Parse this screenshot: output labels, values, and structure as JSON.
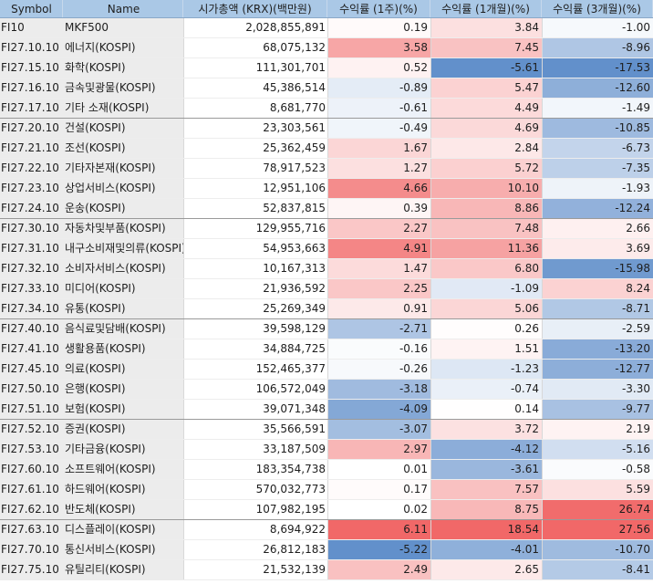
{
  "columns": [
    "Symbol",
    "Name",
    "시가총액 (KRX)(백만원)",
    "수익률 (1주)(%)",
    "수익률 (1개월)(%)",
    "수익률 (3개월)(%)"
  ],
  "colors": {
    "header_bg": "#aac8e6",
    "positive_base": "#f06060",
    "negative_base": "#5a8ac8",
    "label_col_bg": "#ececec"
  },
  "rows": [
    {
      "symbol": "FI10",
      "name": "MKF500",
      "mcap": "2,028,855,891",
      "r1w": "0.19",
      "r1m": "3.84",
      "r3m": "-1.00"
    },
    {
      "symbol": "FI27.10.10",
      "name": "에너지(KOSPI)",
      "mcap": "68,075,132",
      "r1w": "3.58",
      "r1m": "7.45",
      "r3m": "-8.96"
    },
    {
      "symbol": "FI27.15.10",
      "name": "화학(KOSPI)",
      "mcap": "111,301,701",
      "r1w": "0.52",
      "r1m": "-5.61",
      "r3m": "-17.53"
    },
    {
      "symbol": "FI27.16.10",
      "name": "금속및광물(KOSPI)",
      "mcap": "45,386,514",
      "r1w": "-0.89",
      "r1m": "5.47",
      "r3m": "-12.60"
    },
    {
      "symbol": "FI27.17.10",
      "name": "기타 소재(KOSPI)",
      "mcap": "8,681,770",
      "r1w": "-0.61",
      "r1m": "4.49",
      "r3m": "-1.49",
      "group_end": true
    },
    {
      "symbol": "FI27.20.10",
      "name": "건설(KOSPI)",
      "mcap": "23,303,561",
      "r1w": "-0.49",
      "r1m": "4.69",
      "r3m": "-10.85"
    },
    {
      "symbol": "FI27.21.10",
      "name": "조선(KOSPI)",
      "mcap": "25,362,459",
      "r1w": "1.67",
      "r1m": "2.84",
      "r3m": "-6.73"
    },
    {
      "symbol": "FI27.22.10",
      "name": "기타자본재(KOSPI)",
      "mcap": "78,917,523",
      "r1w": "1.27",
      "r1m": "5.72",
      "r3m": "-7.35"
    },
    {
      "symbol": "FI27.23.10",
      "name": "상업서비스(KOSPI)",
      "mcap": "12,951,106",
      "r1w": "4.66",
      "r1m": "10.10",
      "r3m": "-1.93"
    },
    {
      "symbol": "FI27.24.10",
      "name": "운송(KOSPI)",
      "mcap": "52,837,815",
      "r1w": "0.39",
      "r1m": "8.86",
      "r3m": "-12.24",
      "group_end": true
    },
    {
      "symbol": "FI27.30.10",
      "name": "자동차및부품(KOSPI)",
      "mcap": "129,955,716",
      "r1w": "2.27",
      "r1m": "7.48",
      "r3m": "2.66"
    },
    {
      "symbol": "FI27.31.10",
      "name": "내구소비재및의류(KOSPI)",
      "mcap": "54,953,663",
      "r1w": "4.91",
      "r1m": "11.36",
      "r3m": "3.69"
    },
    {
      "symbol": "FI27.32.10",
      "name": "소비자서비스(KOSPI)",
      "mcap": "10,167,313",
      "r1w": "1.47",
      "r1m": "6.80",
      "r3m": "-15.98"
    },
    {
      "symbol": "FI27.33.10",
      "name": "미디어(KOSPI)",
      "mcap": "21,936,592",
      "r1w": "2.25",
      "r1m": "-1.09",
      "r3m": "8.24"
    },
    {
      "symbol": "FI27.34.10",
      "name": "유통(KOSPI)",
      "mcap": "25,269,349",
      "r1w": "0.91",
      "r1m": "5.06",
      "r3m": "-8.71",
      "group_end": true
    },
    {
      "symbol": "FI27.40.10",
      "name": "음식료및담배(KOSPI)",
      "mcap": "39,598,129",
      "r1w": "-2.71",
      "r1m": "0.26",
      "r3m": "-2.59"
    },
    {
      "symbol": "FI27.41.10",
      "name": "생활용품(KOSPI)",
      "mcap": "34,884,725",
      "r1w": "-0.16",
      "r1m": "1.51",
      "r3m": "-13.20"
    },
    {
      "symbol": "FI27.45.10",
      "name": "의료(KOSPI)",
      "mcap": "152,465,377",
      "r1w": "-0.26",
      "r1m": "-1.23",
      "r3m": "-12.77"
    },
    {
      "symbol": "FI27.50.10",
      "name": "은행(KOSPI)",
      "mcap": "106,572,049",
      "r1w": "-3.18",
      "r1m": "-0.74",
      "r3m": "-3.30"
    },
    {
      "symbol": "FI27.51.10",
      "name": "보험(KOSPI)",
      "mcap": "39,071,348",
      "r1w": "-4.09",
      "r1m": "0.14",
      "r3m": "-9.77",
      "group_end": true
    },
    {
      "symbol": "FI27.52.10",
      "name": "증권(KOSPI)",
      "mcap": "35,566,591",
      "r1w": "-3.07",
      "r1m": "3.72",
      "r3m": "2.19"
    },
    {
      "symbol": "FI27.53.10",
      "name": "기타금융(KOSPI)",
      "mcap": "33,187,509",
      "r1w": "2.97",
      "r1m": "-4.12",
      "r3m": "-5.16"
    },
    {
      "symbol": "FI27.60.10",
      "name": "소프트웨어(KOSPI)",
      "mcap": "183,354,738",
      "r1w": "0.01",
      "r1m": "-3.61",
      "r3m": "-0.58"
    },
    {
      "symbol": "FI27.61.10",
      "name": "하드웨어(KOSPI)",
      "mcap": "570,032,773",
      "r1w": "0.17",
      "r1m": "7.57",
      "r3m": "5.59"
    },
    {
      "symbol": "FI27.62.10",
      "name": "반도체(KOSPI)",
      "mcap": "107,982,195",
      "r1w": "0.02",
      "r1m": "8.75",
      "r3m": "26.74",
      "group_end": true
    },
    {
      "symbol": "FI27.63.10",
      "name": "디스플레이(KOSPI)",
      "mcap": "8,694,922",
      "r1w": "6.11",
      "r1m": "18.54",
      "r3m": "27.56"
    },
    {
      "symbol": "FI27.70.10",
      "name": "통신서비스(KOSPI)",
      "mcap": "26,812,183",
      "r1w": "-5.22",
      "r1m": "-4.01",
      "r3m": "-10.70"
    },
    {
      "symbol": "FI27.75.10",
      "name": "유틸리티(KOSPI)",
      "mcap": "21,532,139",
      "r1w": "2.49",
      "r1m": "2.65",
      "r3m": "-8.41"
    }
  ]
}
